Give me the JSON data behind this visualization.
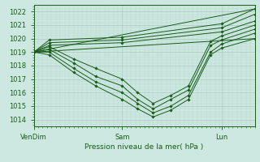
{
  "xlabel": "Pression niveau de la mer( hPa )",
  "ylim": [
    1013.5,
    1022.5
  ],
  "yticks": [
    1014,
    1015,
    1016,
    1017,
    1018,
    1019,
    1020,
    1021,
    1022
  ],
  "xtick_labels": [
    "VenDim",
    "Sam",
    "Lun"
  ],
  "xtick_positions": [
    0.0,
    0.4,
    0.85
  ],
  "bg_color": "#cce8e0",
  "grid_color_major": "#a8c8c0",
  "grid_color_minor": "#b8d8d0",
  "line_color": "#1a5c1a",
  "series": [
    {
      "x": [
        0.0,
        0.07,
        0.4,
        0.85,
        1.0
      ],
      "y": [
        1019.0,
        1019.9,
        1020.1,
        1021.1,
        1022.2
      ]
    },
    {
      "x": [
        0.0,
        0.07,
        0.4,
        0.85,
        1.0
      ],
      "y": [
        1019.0,
        1019.7,
        1019.9,
        1020.8,
        1021.8
      ]
    },
    {
      "x": [
        0.0,
        0.07,
        0.4,
        0.85,
        1.0
      ],
      "y": [
        1019.0,
        1019.5,
        1019.7,
        1020.5,
        1021.3
      ]
    },
    {
      "x": [
        0.0,
        0.07,
        0.18,
        0.28,
        0.4,
        0.47,
        0.54,
        0.62,
        0.7,
        0.8,
        0.85,
        1.0
      ],
      "y": [
        1019.0,
        1019.4,
        1018.5,
        1017.8,
        1017.0,
        1016.0,
        1015.2,
        1015.8,
        1016.5,
        1019.8,
        1020.2,
        1021.0
      ]
    },
    {
      "x": [
        0.0,
        0.07,
        0.18,
        0.28,
        0.4,
        0.47,
        0.54,
        0.62,
        0.7,
        0.8,
        0.85,
        1.0
      ],
      "y": [
        1019.0,
        1019.2,
        1018.2,
        1017.2,
        1016.5,
        1015.5,
        1014.8,
        1015.5,
        1016.2,
        1019.5,
        1019.9,
        1020.7
      ]
    },
    {
      "x": [
        0.0,
        0.07,
        0.18,
        0.28,
        0.4,
        0.47,
        0.54,
        0.62,
        0.7,
        0.8,
        0.85,
        1.0
      ],
      "y": [
        1019.0,
        1019.0,
        1017.8,
        1016.8,
        1016.0,
        1015.2,
        1014.5,
        1015.0,
        1015.8,
        1019.0,
        1019.6,
        1020.4
      ]
    },
    {
      "x": [
        0.0,
        0.07,
        0.18,
        0.28,
        0.4,
        0.47,
        0.54,
        0.62,
        0.7,
        0.8,
        0.85,
        1.0
      ],
      "y": [
        1019.0,
        1018.8,
        1017.5,
        1016.5,
        1015.5,
        1014.8,
        1014.2,
        1014.7,
        1015.5,
        1018.8,
        1019.3,
        1020.0
      ]
    },
    {
      "x": [
        0.0,
        1.0
      ],
      "y": [
        1019.0,
        1022.2
      ]
    },
    {
      "x": [
        0.0,
        1.0
      ],
      "y": [
        1019.0,
        1020.0
      ]
    }
  ]
}
